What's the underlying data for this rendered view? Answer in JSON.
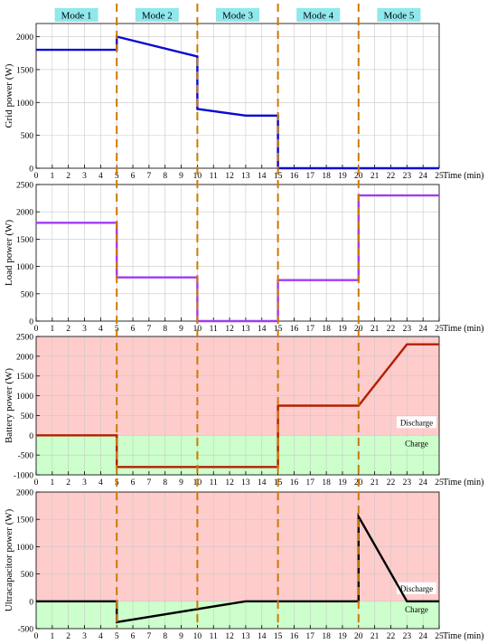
{
  "modes": [
    "Mode 1",
    "Mode 2",
    "Mode 3",
    "Mode 4",
    "Mode 5"
  ],
  "mode_boundaries": [
    5,
    10,
    15,
    20
  ],
  "colors": {
    "mode_label_bg": "#8fe8ec",
    "boundary_line": "#cc7a00",
    "discharge_region": "#ffcccc",
    "charge_region": "#ccffcc",
    "grid": "#c8c8c8"
  },
  "chart_data": [
    {
      "type": "line",
      "ylabel": "Grid power (W)",
      "xlabel": "Time (min)",
      "xlim": [
        0,
        25
      ],
      "ylim": [
        0,
        2200
      ],
      "yticks": [
        0,
        500,
        1000,
        1500,
        2000
      ],
      "xticks": [
        0,
        1,
        2,
        3,
        4,
        5,
        6,
        7,
        8,
        9,
        10,
        11,
        12,
        13,
        14,
        15,
        16,
        17,
        18,
        19,
        20,
        21,
        22,
        23,
        24,
        25
      ],
      "line_color": "#0a0ad2",
      "x": [
        0,
        5,
        5,
        10,
        10,
        13,
        15,
        15,
        25
      ],
      "y": [
        1800,
        1800,
        2000,
        1700,
        900,
        800,
        800,
        0,
        0
      ]
    },
    {
      "type": "line",
      "ylabel": "Load power (W)",
      "xlabel": "Time (min)",
      "xlim": [
        0,
        25
      ],
      "ylim": [
        0,
        2500
      ],
      "yticks": [
        0,
        500,
        1000,
        1500,
        2000,
        2500
      ],
      "xticks": [
        0,
        1,
        2,
        3,
        4,
        5,
        6,
        7,
        8,
        9,
        10,
        11,
        12,
        13,
        14,
        15,
        16,
        17,
        18,
        19,
        20,
        21,
        22,
        23,
        24,
        25
      ],
      "line_color": "#a03cf0",
      "x": [
        0,
        5,
        5,
        10,
        10,
        15,
        15,
        20,
        20,
        25
      ],
      "y": [
        1800,
        1800,
        800,
        800,
        0,
        0,
        750,
        750,
        2300,
        2300
      ]
    },
    {
      "type": "line",
      "ylabel": "Battery power (W)",
      "xlabel": "Time (min)",
      "xlim": [
        0,
        25
      ],
      "ylim": [
        -1000,
        2500
      ],
      "yticks": [
        -1000,
        -500,
        0,
        500,
        1000,
        1500,
        2000,
        2500
      ],
      "xticks": [
        0,
        1,
        2,
        3,
        4,
        5,
        6,
        7,
        8,
        9,
        10,
        11,
        12,
        13,
        14,
        15,
        16,
        17,
        18,
        19,
        20,
        21,
        22,
        23,
        24,
        25
      ],
      "line_color": "#b41e00",
      "regions": {
        "discharge_label": "Discharge",
        "charge_label": "Charge"
      },
      "x": [
        0,
        5,
        5,
        15,
        15,
        20,
        23,
        25
      ],
      "y": [
        0,
        0,
        -800,
        -800,
        750,
        750,
        2300,
        2300
      ]
    },
    {
      "type": "line",
      "ylabel": "Ultracapacitor power (W)",
      "xlabel": "Time (min)",
      "xlim": [
        0,
        25
      ],
      "ylim": [
        -500,
        2000
      ],
      "yticks": [
        -500,
        0,
        500,
        1000,
        1500,
        2000
      ],
      "xticks": [
        0,
        1,
        2,
        3,
        4,
        5,
        6,
        7,
        8,
        9,
        10,
        11,
        12,
        13,
        14,
        15,
        16,
        17,
        18,
        19,
        20,
        21,
        22,
        23,
        24,
        25
      ],
      "line_color": "#000000",
      "regions": {
        "discharge_label": "Discharge",
        "charge_label": "Charge"
      },
      "x": [
        0,
        5,
        5,
        13,
        20,
        20,
        23,
        25
      ],
      "y": [
        0,
        0,
        -380,
        0,
        0,
        1550,
        0,
        0
      ]
    }
  ]
}
